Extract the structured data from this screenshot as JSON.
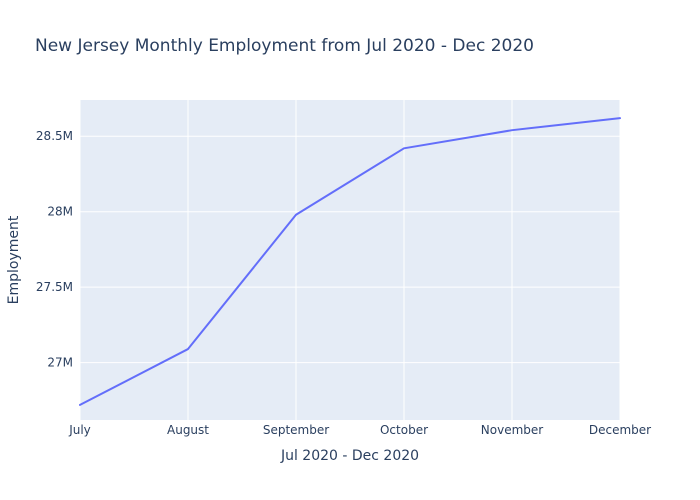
{
  "chart_data": {
    "type": "line",
    "title": "New Jersey Monthly Employment from Jul 2020 - Dec 2020",
    "xlabel": "Jul 2020 - Dec 2020",
    "ylabel": "Employment",
    "categories": [
      "July",
      "August",
      "September",
      "October",
      "November",
      "December"
    ],
    "series": [
      {
        "values": [
          26720000,
          27090000,
          27980000,
          28420000,
          28540000,
          28620000
        ]
      }
    ],
    "ylim": [
      26620000,
      28740000
    ],
    "yticks": [
      27000000,
      27500000,
      28000000,
      28500000
    ],
    "ytick_labels": [
      "27M",
      "27.5M",
      "28M",
      "28.5M"
    ],
    "grid": true,
    "legend": "none",
    "colors": {
      "line": "#636efa",
      "plot_bg": "#e5ecf6",
      "grid": "#ffffff",
      "text": "#2a3f5f"
    }
  }
}
